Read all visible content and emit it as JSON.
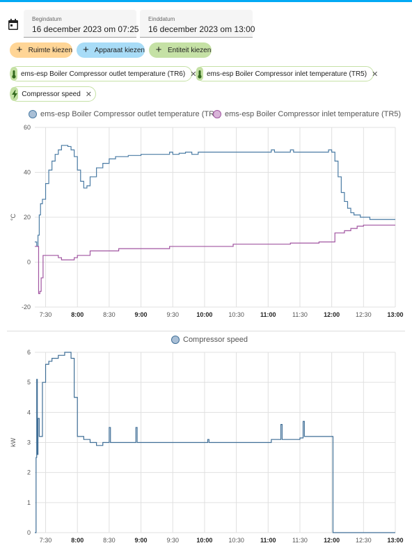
{
  "header": {
    "calendar_icon": "calendar-icon",
    "start": {
      "label": "Begindatum",
      "value": "16 december 2023 om 07:25"
    },
    "end": {
      "label": "Einddatum",
      "value": "16 december 2023 om 13:00"
    }
  },
  "pickers": [
    {
      "label": "Ruimte kiezen",
      "color": "#ffd596"
    },
    {
      "label": "Apparaat kiezen",
      "color": "#a8dcf7"
    },
    {
      "label": "Entiteit kiezen",
      "color": "#c5e1a5"
    }
  ],
  "chips": [
    {
      "label": "ems-esp Boiler Compressor outlet temperature (TR6)",
      "icon": "thermometer-icon"
    },
    {
      "label": "ems-esp Boiler Compressor inlet temperature (TR5)",
      "icon": "thermometer-icon"
    },
    {
      "label": "Compressor speed",
      "icon": "lightning-icon"
    }
  ],
  "chart_data": [
    {
      "type": "line",
      "ylabel": "°C",
      "ylim": [
        -20,
        60
      ],
      "yticks": [
        "60",
        "40",
        "20",
        "0",
        "-20"
      ],
      "xlim_hours": [
        7.33,
        13.0
      ],
      "xticks": [
        {
          "t": 7.5,
          "label": "7:30",
          "bold": false
        },
        {
          "t": 8.0,
          "label": "8:00",
          "bold": true
        },
        {
          "t": 8.5,
          "label": "8:30",
          "bold": false
        },
        {
          "t": 9.0,
          "label": "9:00",
          "bold": true
        },
        {
          "t": 9.5,
          "label": "9:30",
          "bold": false
        },
        {
          "t": 10.0,
          "label": "10:00",
          "bold": true
        },
        {
          "t": 10.5,
          "label": "10:30",
          "bold": false
        },
        {
          "t": 11.0,
          "label": "11:00",
          "bold": true
        },
        {
          "t": 11.5,
          "label": "11:30",
          "bold": false
        },
        {
          "t": 12.0,
          "label": "12:00",
          "bold": true
        },
        {
          "t": 12.5,
          "label": "12:30",
          "bold": false
        },
        {
          "t": 13.0,
          "label": "13:00",
          "bold": true
        }
      ],
      "grid": true,
      "legend": "top",
      "series": [
        {
          "name": "ems-esp Boiler Compressor outlet temperature (TR6)",
          "color": "#4a7ba4",
          "fill": "#a9bfd6",
          "step": true,
          "points": [
            [
              7.33,
              9
            ],
            [
              7.36,
              7
            ],
            [
              7.38,
              12
            ],
            [
              7.4,
              21
            ],
            [
              7.42,
              26
            ],
            [
              7.45,
              28
            ],
            [
              7.5,
              35
            ],
            [
              7.55,
              41
            ],
            [
              7.6,
              45
            ],
            [
              7.65,
              48
            ],
            [
              7.7,
              50
            ],
            [
              7.75,
              52
            ],
            [
              7.8,
              52
            ],
            [
              7.85,
              51.5
            ],
            [
              7.9,
              50
            ],
            [
              7.95,
              47
            ],
            [
              8.0,
              41
            ],
            [
              8.05,
              36
            ],
            [
              8.1,
              33
            ],
            [
              8.15,
              34
            ],
            [
              8.2,
              38
            ],
            [
              8.3,
              42
            ],
            [
              8.4,
              44
            ],
            [
              8.5,
              46
            ],
            [
              8.6,
              47
            ],
            [
              8.8,
              47.5
            ],
            [
              9.0,
              48
            ],
            [
              9.4,
              48
            ],
            [
              9.45,
              49
            ],
            [
              9.5,
              48
            ],
            [
              9.6,
              48.5
            ],
            [
              9.7,
              49
            ],
            [
              9.8,
              48
            ],
            [
              9.9,
              49
            ],
            [
              10.0,
              49
            ],
            [
              11.0,
              49
            ],
            [
              11.05,
              50
            ],
            [
              11.1,
              49
            ],
            [
              11.3,
              49
            ],
            [
              11.35,
              50
            ],
            [
              11.4,
              49
            ],
            [
              11.6,
              49
            ],
            [
              11.9,
              49
            ],
            [
              11.95,
              50
            ],
            [
              12.0,
              49
            ],
            [
              12.05,
              45
            ],
            [
              12.1,
              38
            ],
            [
              12.15,
              31
            ],
            [
              12.2,
              27
            ],
            [
              12.25,
              24
            ],
            [
              12.3,
              22
            ],
            [
              12.35,
              21
            ],
            [
              12.45,
              20
            ],
            [
              12.6,
              19
            ],
            [
              12.8,
              19
            ],
            [
              13.0,
              19
            ]
          ]
        },
        {
          "name": "ems-esp Boiler Compressor inlet temperature (TR5)",
          "color": "#a155a1",
          "fill": "none",
          "step": true,
          "points": [
            [
              7.33,
              7
            ],
            [
              7.38,
              7
            ],
            [
              7.39,
              -14
            ],
            [
              7.41,
              -13
            ],
            [
              7.43,
              -7
            ],
            [
              7.46,
              3
            ],
            [
              7.6,
              3
            ],
            [
              7.7,
              2
            ],
            [
              7.75,
              1
            ],
            [
              7.9,
              1
            ],
            [
              7.95,
              2
            ],
            [
              8.0,
              3
            ],
            [
              8.15,
              3
            ],
            [
              8.2,
              5
            ],
            [
              8.6,
              5
            ],
            [
              8.65,
              6
            ],
            [
              9.4,
              6
            ],
            [
              9.45,
              7
            ],
            [
              10.4,
              7
            ],
            [
              10.45,
              8
            ],
            [
              11.3,
              8
            ],
            [
              11.35,
              8.5
            ],
            [
              11.8,
              9
            ],
            [
              12.0,
              9
            ],
            [
              12.05,
              13
            ],
            [
              12.2,
              14
            ],
            [
              12.3,
              15
            ],
            [
              12.4,
              16
            ],
            [
              12.5,
              16.5
            ],
            [
              13.0,
              16.5
            ]
          ]
        }
      ]
    },
    {
      "type": "line",
      "ylabel": "kW",
      "ylim": [
        0,
        6
      ],
      "yticks": [
        "6",
        "5",
        "4",
        "3",
        "2",
        "1",
        "0"
      ],
      "xlim_hours": [
        7.33,
        13.0
      ],
      "grid": true,
      "legend": "top",
      "series": [
        {
          "name": "Compressor speed",
          "color": "#3f6e96",
          "fill": "#a9bfd6",
          "step": true,
          "points": [
            [
              7.33,
              0
            ],
            [
              7.35,
              2.5
            ],
            [
              7.36,
              5.1
            ],
            [
              7.37,
              2.6
            ],
            [
              7.38,
              3.8
            ],
            [
              7.4,
              3.2
            ],
            [
              7.45,
              5.0
            ],
            [
              7.5,
              5.6
            ],
            [
              7.55,
              5.7
            ],
            [
              7.6,
              5.8
            ],
            [
              7.7,
              5.9
            ],
            [
              7.8,
              6.0
            ],
            [
              7.85,
              6.0
            ],
            [
              7.9,
              5.8
            ],
            [
              7.95,
              4.5
            ],
            [
              8.0,
              3.2
            ],
            [
              8.1,
              3.1
            ],
            [
              8.2,
              3.0
            ],
            [
              8.3,
              2.9
            ],
            [
              8.4,
              3.0
            ],
            [
              8.5,
              3.5
            ],
            [
              8.52,
              3.0
            ],
            [
              8.6,
              3.0
            ],
            [
              8.9,
              3.0
            ],
            [
              8.92,
              3.5
            ],
            [
              8.94,
              3.0
            ],
            [
              10.0,
              3.0
            ],
            [
              10.05,
              3.1
            ],
            [
              10.07,
              3.0
            ],
            [
              11.0,
              3.0
            ],
            [
              11.05,
              3.1
            ],
            [
              11.15,
              3.1
            ],
            [
              11.2,
              3.6
            ],
            [
              11.22,
              3.1
            ],
            [
              11.3,
              3.1
            ],
            [
              11.4,
              3.1
            ],
            [
              11.5,
              3.15
            ],
            [
              11.55,
              3.7
            ],
            [
              11.57,
              3.2
            ],
            [
              11.6,
              3.2
            ],
            [
              11.7,
              3.2
            ],
            [
              12.0,
              3.2
            ],
            [
              12.02,
              0
            ],
            [
              13.0,
              0
            ]
          ]
        }
      ]
    }
  ]
}
